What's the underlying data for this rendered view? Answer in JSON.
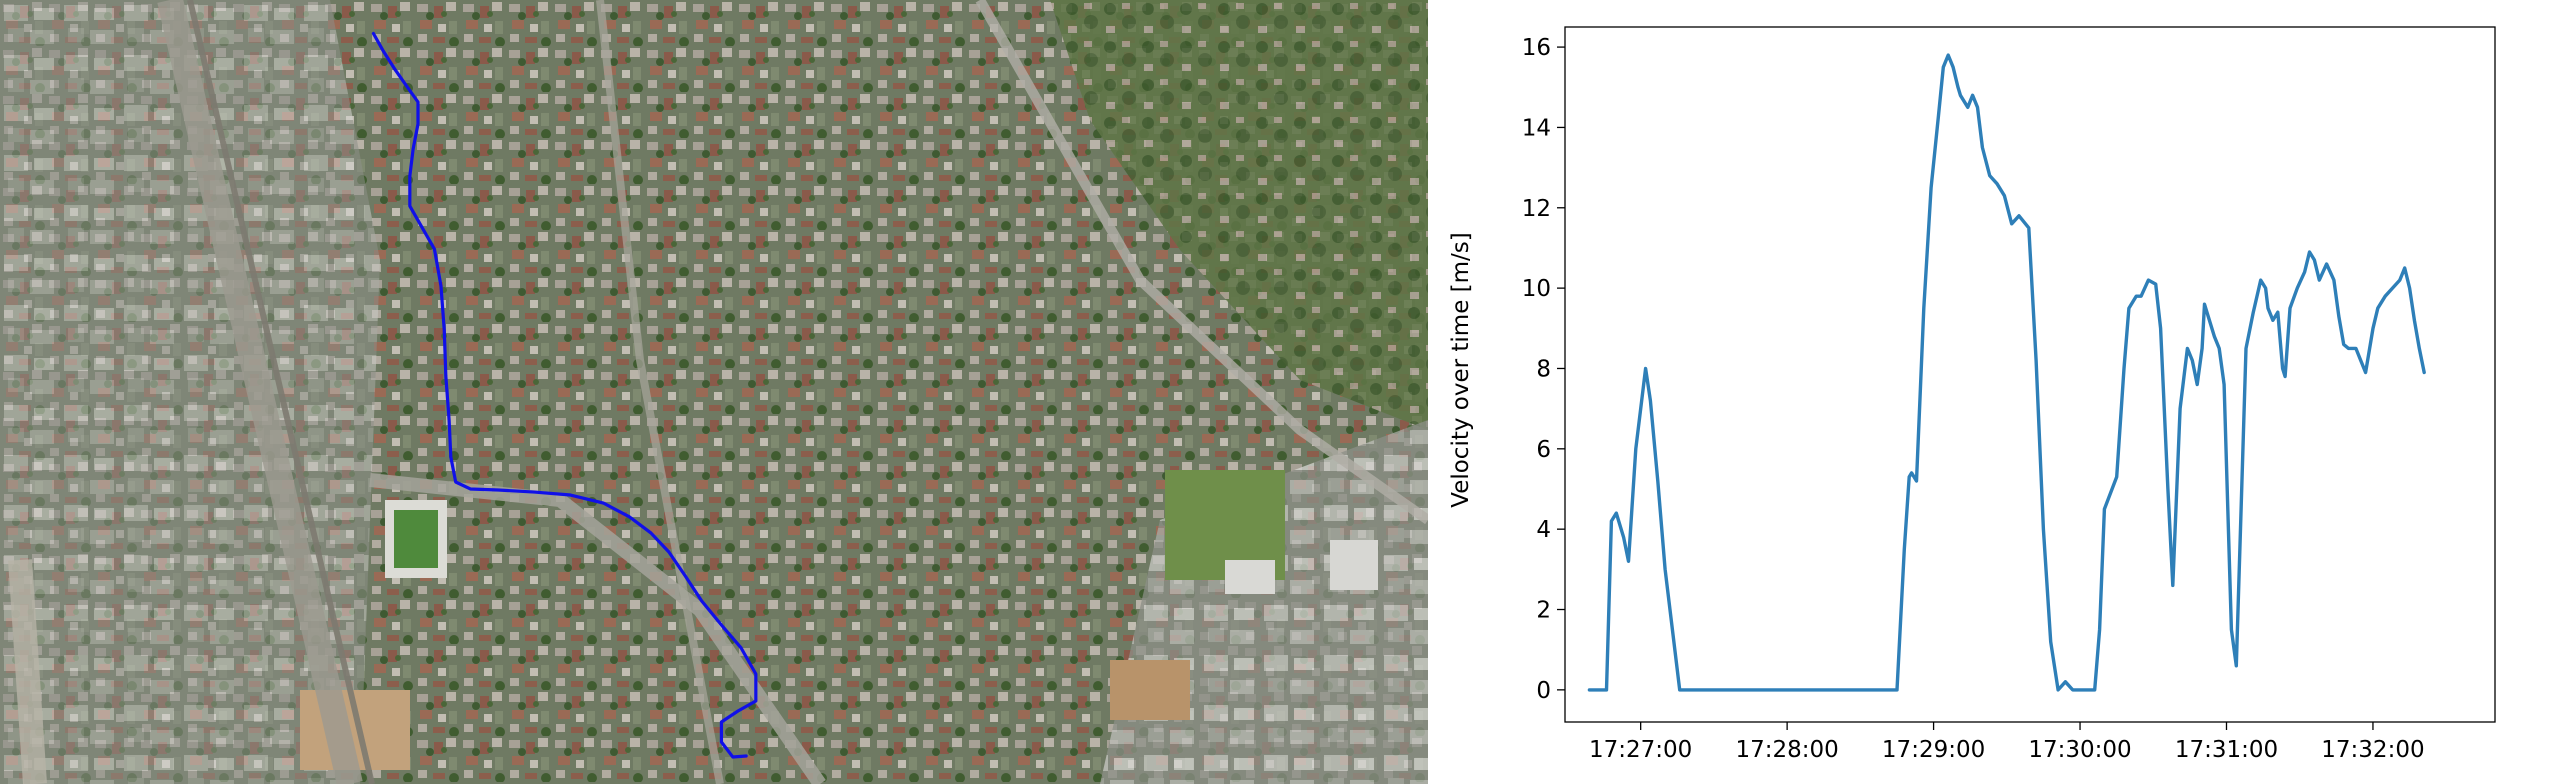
{
  "map": {
    "kind": "aerial-photo",
    "track_color": "#1010e8",
    "track_points": [
      [
        0.2615,
        0.0427
      ],
      [
        0.2686,
        0.0657
      ],
      [
        0.2766,
        0.0886
      ],
      [
        0.2847,
        0.1097
      ],
      [
        0.2927,
        0.1301
      ],
      [
        0.2927,
        0.1582
      ],
      [
        0.2893,
        0.1901
      ],
      [
        0.287,
        0.2245
      ],
      [
        0.287,
        0.2628
      ],
      [
        0.295,
        0.2883
      ],
      [
        0.3042,
        0.3176
      ],
      [
        0.3088,
        0.3648
      ],
      [
        0.3111,
        0.4209
      ],
      [
        0.3122,
        0.4796
      ],
      [
        0.3145,
        0.5357
      ],
      [
        0.3157,
        0.5829
      ],
      [
        0.3191,
        0.6148
      ],
      [
        0.3294,
        0.6237
      ],
      [
        0.3489,
        0.625
      ],
      [
        0.3742,
        0.6276
      ],
      [
        0.3995,
        0.6314
      ],
      [
        0.4225,
        0.6416
      ],
      [
        0.4409,
        0.6594
      ],
      [
        0.4558,
        0.6798
      ],
      [
        0.4684,
        0.7041
      ],
      [
        0.4799,
        0.7347
      ],
      [
        0.4914,
        0.7666
      ],
      [
        0.5052,
        0.7972
      ],
      [
        0.519,
        0.8265
      ],
      [
        0.5293,
        0.8597
      ],
      [
        0.5293,
        0.8941
      ],
      [
        0.5168,
        0.9069
      ],
      [
        0.5052,
        0.9209
      ],
      [
        0.5052,
        0.9464
      ],
      [
        0.5132,
        0.9656
      ],
      [
        0.5225,
        0.9643
      ]
    ]
  },
  "chart_data": {
    "type": "line",
    "ylabel": "Velocity over time [m/s]",
    "xlabel": "",
    "title": "",
    "x_unit": "time (hh:mm:ss)",
    "xlim": [
      "17:26:29",
      "17:32:50"
    ],
    "ylim": [
      -0.8,
      16.5
    ],
    "x_ticks": [
      "17:27:00",
      "17:28:00",
      "17:29:00",
      "17:30:00",
      "17:31:00",
      "17:32:00"
    ],
    "y_ticks": [
      0,
      2,
      4,
      6,
      8,
      10,
      12,
      14,
      16
    ],
    "grid": false,
    "legend": "none",
    "line_color": "#2e7fb8",
    "series": [
      {
        "x": [
          "17:26:39",
          "17:26:46",
          "17:26:48",
          "17:26:50",
          "17:26:53",
          "17:26:55",
          "17:26:58",
          "17:27:02",
          "17:27:04",
          "17:27:07",
          "17:27:10",
          "17:27:13",
          "17:27:16",
          "17:27:24",
          "17:27:40",
          "17:28:00",
          "17:28:20",
          "17:28:40",
          "17:28:45",
          "17:28:48",
          "17:28:50",
          "17:28:51",
          "17:28:53",
          "17:28:56",
          "17:28:59",
          "17:29:02",
          "17:29:04",
          "17:29:06",
          "17:29:08",
          "17:29:10",
          "17:29:11",
          "17:29:14",
          "17:29:16",
          "17:29:18",
          "17:29:20",
          "17:29:23",
          "17:29:26",
          "17:29:29",
          "17:29:32",
          "17:29:35",
          "17:29:39",
          "17:29:42",
          "17:29:45",
          "17:29:48",
          "17:29:51",
          "17:29:54",
          "17:29:57",
          "17:30:00",
          "17:30:02",
          "17:30:04",
          "17:30:06",
          "17:30:08",
          "17:30:10",
          "17:30:15",
          "17:30:18",
          "17:30:20",
          "17:30:23",
          "17:30:25",
          "17:30:28",
          "17:30:31",
          "17:30:33",
          "17:30:36",
          "17:30:38",
          "17:30:41",
          "17:30:44",
          "17:30:46",
          "17:30:48",
          "17:30:50",
          "17:30:51",
          "17:30:53",
          "17:30:55",
          "17:30:57",
          "17:30:59",
          "17:31:02",
          "17:31:04",
          "17:31:06",
          "17:31:08",
          "17:31:11",
          "17:31:14",
          "17:31:16",
          "17:31:17",
          "17:31:19",
          "17:31:21",
          "17:31:23",
          "17:31:24",
          "17:31:26",
          "17:31:29",
          "17:31:32",
          "17:31:34",
          "17:31:36",
          "17:31:38",
          "17:31:41",
          "17:31:44",
          "17:31:46",
          "17:31:48",
          "17:31:50",
          "17:31:53",
          "17:31:55",
          "17:31:57",
          "17:32:00",
          "17:32:02",
          "17:32:05",
          "17:32:08",
          "17:32:11",
          "17:32:13",
          "17:32:15",
          "17:32:17",
          "17:32:19",
          "17:32:21"
        ],
        "y": [
          0.0,
          0.0,
          4.2,
          4.4,
          3.8,
          3.2,
          6.0,
          8.0,
          7.2,
          5.2,
          3.0,
          1.5,
          0.0,
          0.0,
          0.0,
          0.0,
          0.0,
          0.0,
          0.0,
          3.5,
          5.3,
          5.4,
          5.2,
          9.5,
          12.5,
          14.3,
          15.5,
          15.8,
          15.5,
          15.0,
          14.8,
          14.5,
          14.8,
          14.5,
          13.5,
          12.8,
          12.6,
          12.3,
          11.6,
          11.8,
          11.5,
          8.2,
          4.0,
          1.2,
          0.0,
          0.2,
          0.0,
          0.0,
          0.0,
          0.0,
          0.0,
          1.5,
          4.5,
          5.3,
          8.0,
          9.5,
          9.8,
          9.8,
          10.2,
          10.1,
          9.0,
          5.0,
          2.6,
          7.0,
          8.5,
          8.2,
          7.6,
          8.5,
          9.6,
          9.2,
          8.8,
          8.5,
          7.6,
          1.5,
          0.6,
          4.5,
          8.5,
          9.4,
          10.2,
          10.0,
          9.5,
          9.2,
          9.4,
          8.0,
          7.8,
          9.5,
          10.0,
          10.4,
          10.9,
          10.7,
          10.2,
          10.6,
          10.2,
          9.3,
          8.6,
          8.5,
          8.5,
          8.2,
          7.9,
          9.0,
          9.5,
          9.8,
          10.0,
          10.2,
          10.5,
          10.0,
          9.2,
          8.5,
          7.9
        ]
      }
    ]
  }
}
